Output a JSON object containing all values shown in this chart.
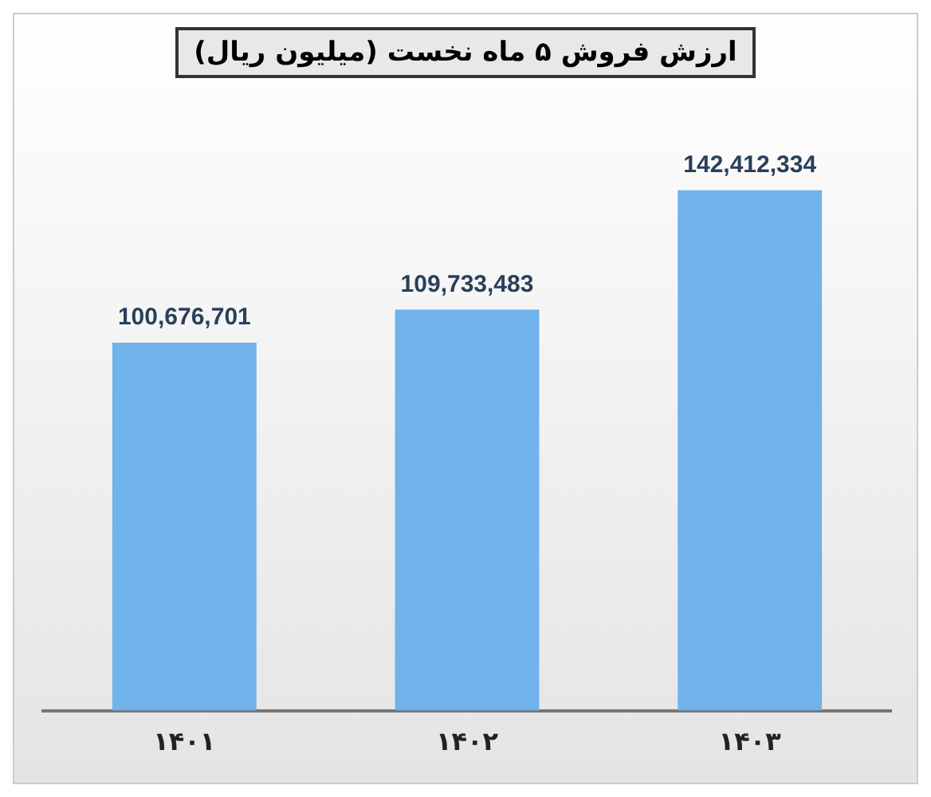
{
  "chart_data": {
    "type": "bar",
    "title": "ارزش فروش ۵ ماه نخست (میلیون ریال)",
    "categories": [
      "۱۴۰۱",
      "۱۴۰۲",
      "۱۴۰۳"
    ],
    "values": [
      100676701,
      109733483,
      142412334
    ],
    "color": "#6fb3ea",
    "value_labels": [
      "100,676,701",
      "109,733,483",
      "142,412,334"
    ]
  }
}
